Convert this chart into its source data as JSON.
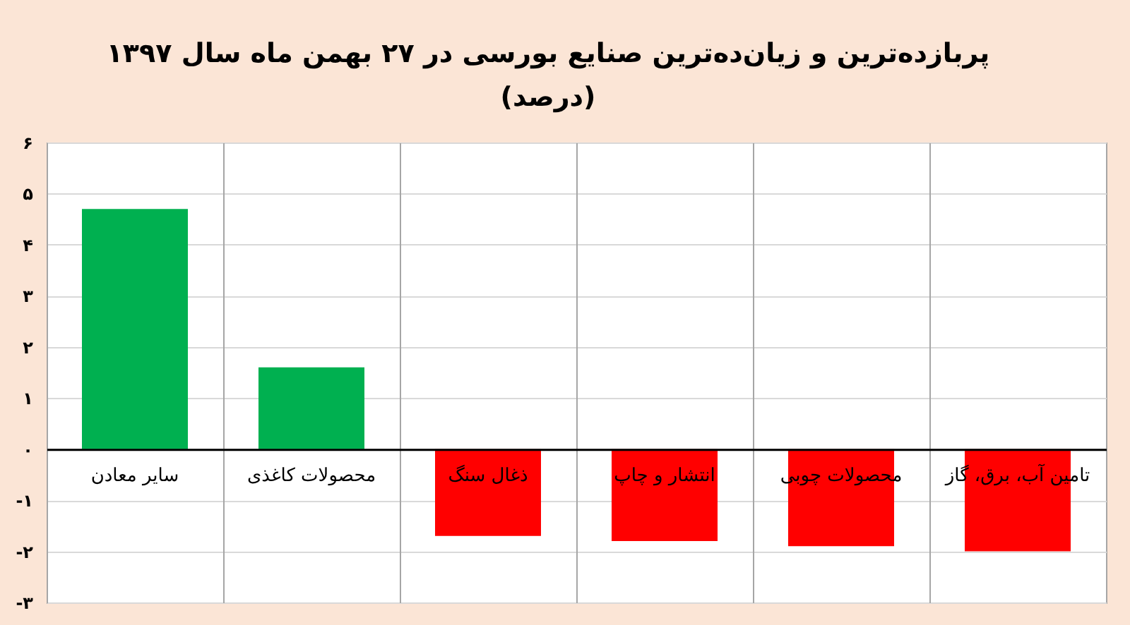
{
  "chart_data": {
    "type": "bar",
    "title": "پربازده‌ترین و زیان‌ده‌ترین صنایع بورسی در ۲۷ بهمن ماه سال ۱۳۹۷",
    "subtitle": "(درصد)",
    "categories": [
      "سایر معادن",
      "محصولات کاغذی",
      "ذغال سنگ",
      "انتشار و چاپ",
      "محصولات چوبی",
      "تامین آب، برق، گاز"
    ],
    "values": [
      4.7,
      1.6,
      -1.7,
      -1.8,
      -1.9,
      -2.0
    ],
    "colors": [
      "#00b050",
      "#00b050",
      "#ff0000",
      "#ff0000",
      "#ff0000",
      "#ff0000"
    ],
    "ylim": [
      -3,
      6
    ],
    "yticks": [
      {
        "value": 6,
        "label": "۶"
      },
      {
        "value": 5,
        "label": "۵"
      },
      {
        "value": 4,
        "label": "۴"
      },
      {
        "value": 3,
        "label": "۳"
      },
      {
        "value": 2,
        "label": "۲"
      },
      {
        "value": 1,
        "label": "۱"
      },
      {
        "value": 0,
        "label": "۰"
      },
      {
        "value": -1,
        "label": "-۱"
      },
      {
        "value": -2,
        "label": "-۲"
      },
      {
        "value": -3,
        "label": "-۳"
      }
    ],
    "grid": true
  }
}
